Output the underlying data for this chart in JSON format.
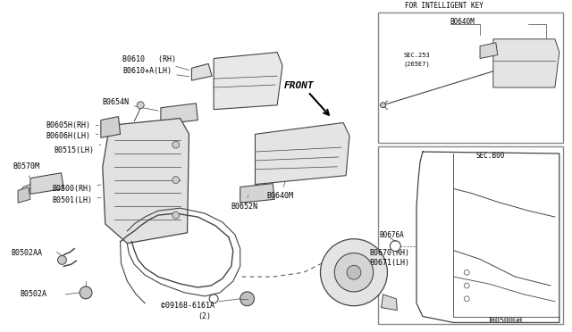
{
  "bg_color": "#ffffff",
  "line_color": "#444444",
  "font_size": 6.0,
  "labels": {
    "B0610_RH": "B0610   (RH)",
    "B0610A_LH": "B0610+A(LH)",
    "B0654N": "B0654N",
    "B0605H_RH": "B0605H(RH)",
    "B0606H_LH": "B0606H(LH)",
    "B0640M_main": "B0640M",
    "B0652N": "B0652N",
    "B0515_LH": "B0515(LH)",
    "B0500_RH": "B0500(RH)",
    "B0501_LH": "B0501(LH)",
    "B0570M": "B0570M",
    "B0502AA": "B0502AA",
    "B0502A": "B0502A",
    "B0670_RH": "B0670(RH)",
    "B0671_LH": "B0671(LH)",
    "screw_label": "©09168-6161A",
    "screw_count": "(2)",
    "FRONT": "FRONT",
    "for_key": "FOR INTELLIGENT KEY",
    "B0640M_ins": "B0640M",
    "SEC253": "SEC.253",
    "in265E7": "(265E7)",
    "SEC800": "SEC.B00",
    "B0676A": "B0676A",
    "JB0500GH": "JB0500GH"
  }
}
